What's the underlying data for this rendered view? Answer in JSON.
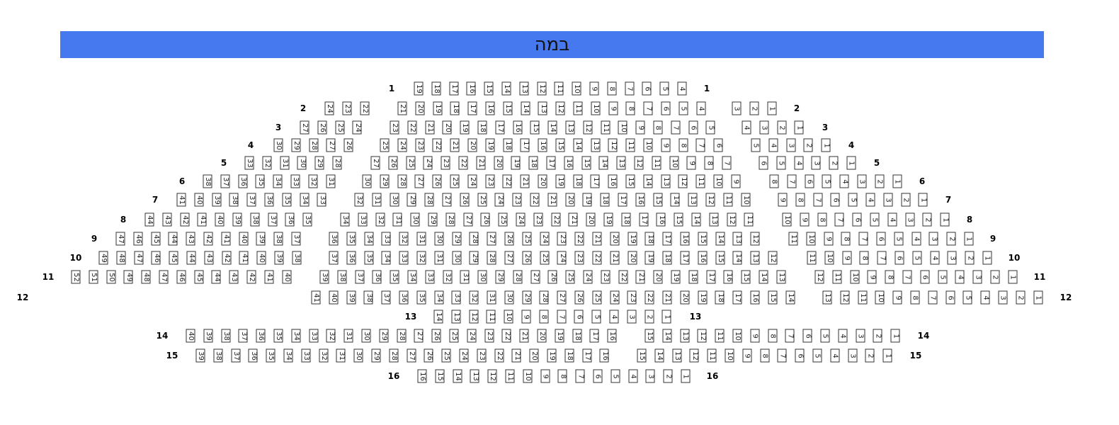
{
  "stage": {
    "label": "במה",
    "color": "#4678f0"
  },
  "rows": [
    {
      "label": "1",
      "sections": [
        {
          "from": 19,
          "to": 4
        }
      ]
    },
    {
      "label": "2",
      "sections": [
        {
          "from": 24,
          "to": 22
        },
        {
          "from": 21,
          "to": 4
        },
        {
          "from": 3,
          "to": 1
        }
      ]
    },
    {
      "label": "3",
      "sections": [
        {
          "from": 27,
          "to": 24
        },
        {
          "from": 23,
          "to": 5
        },
        {
          "from": 4,
          "to": 1
        }
      ]
    },
    {
      "label": "4",
      "sections": [
        {
          "from": 30,
          "to": 26
        },
        {
          "from": 25,
          "to": 6
        },
        {
          "from": 5,
          "to": 1
        }
      ]
    },
    {
      "label": "5",
      "sections": [
        {
          "from": 33,
          "to": 28
        },
        {
          "from": 27,
          "to": 7
        },
        {
          "from": 6,
          "to": 1
        }
      ]
    },
    {
      "label": "6",
      "sections": [
        {
          "from": 38,
          "to": 31
        },
        {
          "from": 30,
          "to": 9
        },
        {
          "from": 8,
          "to": 1
        }
      ]
    },
    {
      "label": "7",
      "sections": [
        {
          "from": 41,
          "to": 33
        },
        {
          "from": 32,
          "to": 10
        },
        {
          "from": 9,
          "to": 1
        }
      ]
    },
    {
      "label": "8",
      "sections": [
        {
          "from": 44,
          "to": 35
        },
        {
          "from": 34,
          "to": 11
        },
        {
          "from": 10,
          "to": 1
        }
      ]
    },
    {
      "label": "9",
      "sections": [
        {
          "from": 47,
          "to": 37
        },
        {
          "from": 36,
          "to": 12
        },
        {
          "from": 11,
          "to": 1
        }
      ]
    },
    {
      "label": "10",
      "sections": [
        {
          "from": 49,
          "to": 38
        },
        {
          "from": 37,
          "to": 12
        },
        {
          "from": 11,
          "to": 1
        }
      ]
    },
    {
      "label": "11",
      "sections": [
        {
          "from": 52,
          "to": 40
        },
        {
          "from": 39,
          "to": 13
        },
        {
          "from": 12,
          "to": 1
        }
      ]
    },
    {
      "label": "12",
      "sections": [
        {
          "from": 41,
          "to": 14
        },
        {
          "from": 13,
          "to": 1
        }
      ]
    },
    {
      "label": "13",
      "sections": [
        {
          "from": 14,
          "to": 1
        }
      ]
    },
    {
      "label": "14",
      "sections": [
        {
          "from": 40,
          "to": 16
        },
        {
          "from": 15,
          "to": 1
        }
      ]
    },
    {
      "label": "15",
      "sections": [
        {
          "from": 39,
          "to": 16
        },
        {
          "from": 15,
          "to": 1
        }
      ]
    },
    {
      "label": "16",
      "sections": [
        {
          "from": 16,
          "to": 1
        }
      ]
    }
  ]
}
